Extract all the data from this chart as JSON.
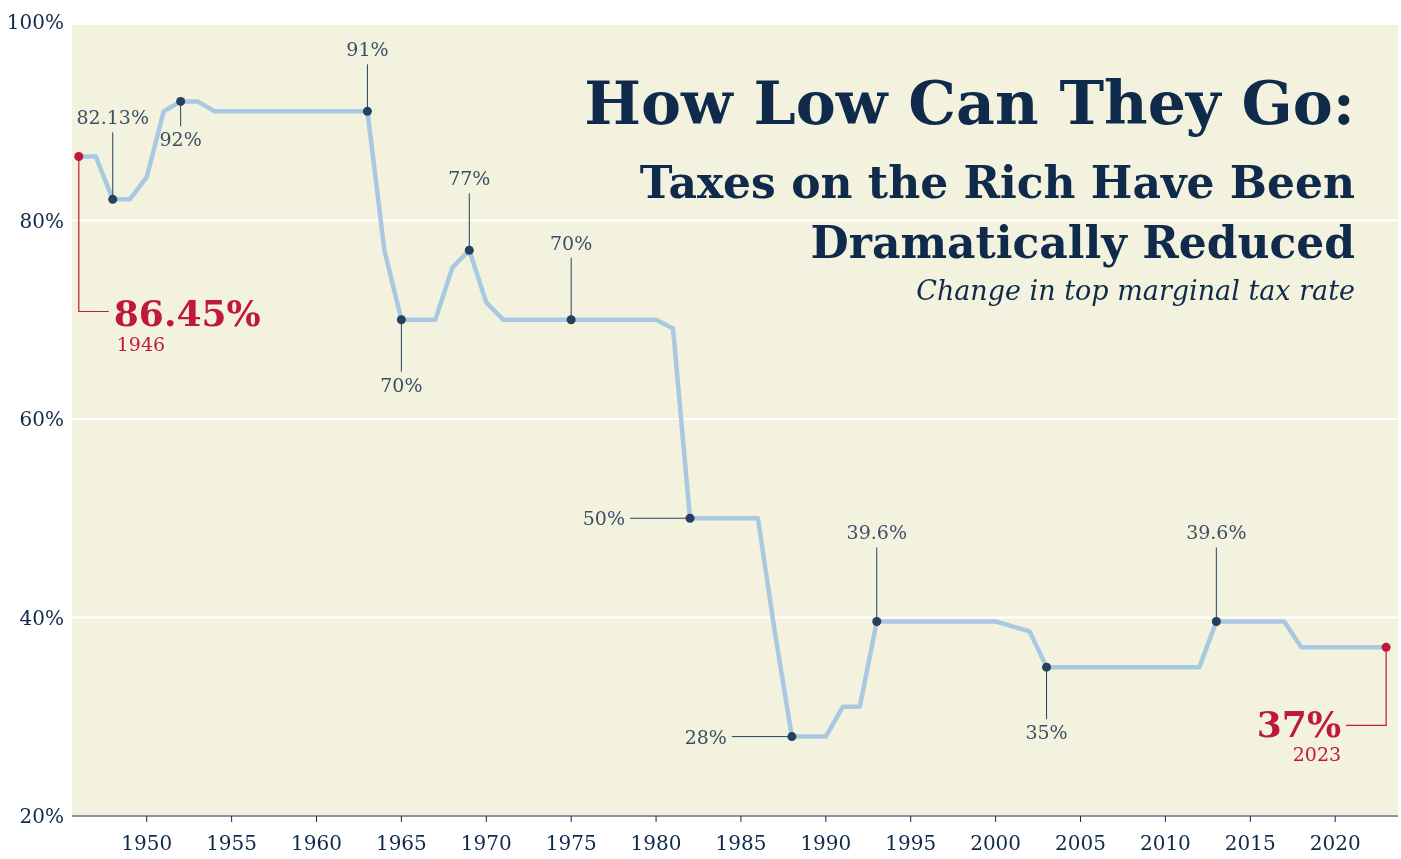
{
  "chart_data": {
    "type": "line",
    "title": "How Low Can They Go:",
    "subtitle": "Taxes on the Rich Have Been Dramatically Reduced",
    "x": [
      1946,
      1947,
      1948,
      1949,
      1950,
      1951,
      1952,
      1953,
      1954,
      1955,
      1956,
      1957,
      1958,
      1959,
      1960,
      1961,
      1962,
      1963,
      1964,
      1965,
      1966,
      1967,
      1968,
      1969,
      1970,
      1971,
      1972,
      1973,
      1974,
      1975,
      1976,
      1977,
      1978,
      1979,
      1980,
      1981,
      1982,
      1983,
      1984,
      1985,
      1986,
      1987,
      1988,
      1989,
      1990,
      1991,
      1992,
      1993,
      1994,
      1995,
      1996,
      1997,
      1998,
      1999,
      2000,
      2001,
      2002,
      2003,
      2004,
      2005,
      2006,
      2007,
      2008,
      2009,
      2010,
      2011,
      2012,
      2013,
      2014,
      2015,
      2016,
      2017,
      2018,
      2019,
      2020,
      2021,
      2022,
      2023
    ],
    "series": [
      {
        "color": "#a9c9e2",
        "values": [
          86.45,
          86.45,
          82.13,
          82.13,
          84.36,
          91,
          92,
          92,
          91,
          91,
          91,
          91,
          91,
          91,
          91,
          91,
          91,
          91,
          77,
          70,
          70,
          70,
          75.25,
          77,
          71.75,
          70,
          70,
          70,
          70,
          70,
          70,
          70,
          70,
          70,
          70,
          69.13,
          50,
          50,
          50,
          50,
          50,
          38.5,
          28,
          28,
          28,
          31,
          31,
          39.6,
          39.6,
          39.6,
          39.6,
          39.6,
          39.6,
          39.6,
          39.6,
          39.1,
          38.6,
          35,
          35,
          35,
          35,
          35,
          35,
          35,
          35,
          35,
          35,
          39.6,
          39.6,
          39.6,
          39.6,
          39.6,
          37,
          37,
          37,
          37,
          37,
          37
        ]
      }
    ],
    "xlim": [
      1945.6,
      2023.7
    ],
    "xticks": [
      1950,
      1955,
      1960,
      1965,
      1970,
      1975,
      1980,
      1985,
      1990,
      1995,
      2000,
      2005,
      2010,
      2015,
      2020
    ],
    "ylim": [
      20,
      100
    ],
    "yticks": [
      {
        "value": 20,
        "label": "20%"
      },
      {
        "value": 40,
        "label": "40%"
      },
      {
        "value": 60,
        "label": "60%"
      },
      {
        "value": 80,
        "label": "80%"
      },
      {
        "value": 100,
        "label": "100%"
      }
    ],
    "grid": "y",
    "annotations": [
      "Change in top marginal tax rate",
      {
        "text": "82.13%",
        "x": 1948,
        "y": 82.13
      },
      {
        "text": "92%",
        "x": 1952,
        "y": 92
      },
      {
        "text": "91%",
        "x": 1963,
        "y": 91
      },
      {
        "text": "70%",
        "x": 1965,
        "y": 70
      },
      {
        "text": "77%",
        "x": 1969,
        "y": 77
      },
      {
        "text": "70%",
        "x": 1975,
        "y": 70
      },
      {
        "text": "50%",
        "x": 1982,
        "y": 50
      },
      {
        "text": "28%",
        "x": 1988,
        "y": 28
      },
      {
        "text": "39.6%",
        "x": 1993,
        "y": 39.6
      },
      {
        "text": "35%",
        "x": 2003,
        "y": 35
      },
      {
        "text": "39.6%",
        "x": 2013,
        "y": 39.6
      },
      {
        "text": "86.45%",
        "x": 1946,
        "y": 86.45
      },
      {
        "text": "1946",
        "x": 1946,
        "y": 86.45
      },
      {
        "text": "37%",
        "x": 2023,
        "y": 37
      },
      {
        "text": "2023",
        "x": 2023,
        "y": 37
      }
    ]
  }
}
